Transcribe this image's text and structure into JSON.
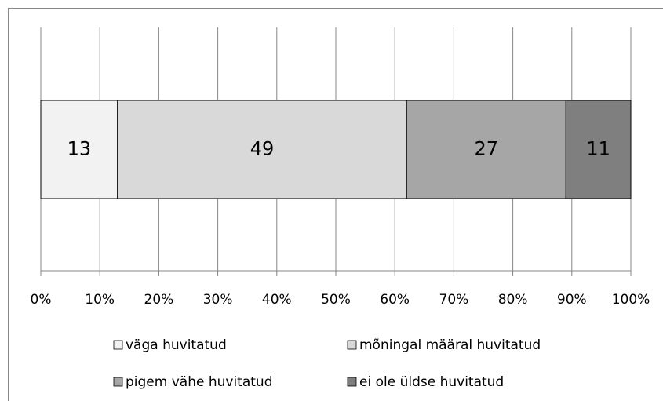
{
  "chart_data": {
    "type": "stacked_bar_horizontal",
    "categories": [
      null
    ],
    "series": [
      {
        "name": "väga huvitatud",
        "color": "#f2f2f2",
        "values": [
          13
        ]
      },
      {
        "name": "mõningal määral huvitatud",
        "color": "#d9d9d9",
        "values": [
          49
        ]
      },
      {
        "name": "pigem vähe huvitatud",
        "color": "#a6a6a6",
        "values": [
          27
        ]
      },
      {
        "name": "ei ole üldse huvitatud",
        "color": "#7f7f7f",
        "values": [
          11
        ]
      }
    ],
    "xlim": [
      0,
      100
    ],
    "xticks": [
      {
        "value": 0,
        "label": "0%"
      },
      {
        "value": 10,
        "label": "10%"
      },
      {
        "value": 20,
        "label": "20%"
      },
      {
        "value": 30,
        "label": "30%"
      },
      {
        "value": 40,
        "label": "40%"
      },
      {
        "value": 50,
        "label": "50%"
      },
      {
        "value": 60,
        "label": "60%"
      },
      {
        "value": 70,
        "label": "70%"
      },
      {
        "value": 80,
        "label": "80%"
      },
      {
        "value": 90,
        "label": "90%"
      },
      {
        "value": 100,
        "label": "100%"
      }
    ],
    "grid": true,
    "legend": "bottom"
  }
}
